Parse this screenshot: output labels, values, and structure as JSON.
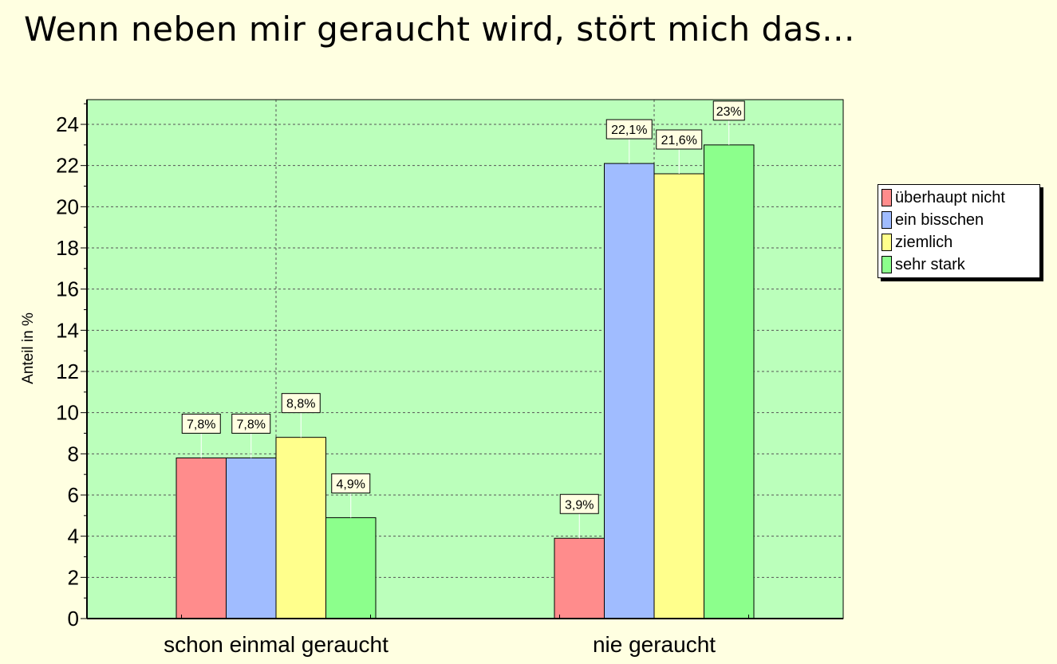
{
  "title": "Wenn neben mir geraucht wird, stört mich das...",
  "chart_data": {
    "type": "bar",
    "categories": [
      "schon einmal geraucht",
      "nie geraucht"
    ],
    "series": [
      {
        "name": "überhaupt nicht",
        "values": [
          7.8,
          3.9
        ],
        "labels": [
          "7,8%",
          "3,9%"
        ],
        "color": "#ff8c8c"
      },
      {
        "name": "ein bisschen",
        "values": [
          7.8,
          22.1
        ],
        "labels": [
          "7,8%",
          "22,1%"
        ],
        "color": "#a0bcff"
      },
      {
        "name": "ziemlich",
        "values": [
          8.8,
          21.6
        ],
        "labels": [
          "8,8%",
          "21,6%"
        ],
        "color": "#ffff8c"
      },
      {
        "name": "sehr stark",
        "values": [
          4.9,
          23
        ],
        "labels": [
          "4,9%",
          "23%"
        ],
        "color": "#8cff8c"
      }
    ],
    "xlabel": "",
    "ylabel": "Anteil in %",
    "ylim": [
      0,
      25.2
    ],
    "yticks": [
      0,
      2,
      4,
      6,
      8,
      10,
      12,
      14,
      16,
      18,
      20,
      22,
      24
    ],
    "grid": true,
    "legend": "right",
    "plot_background": "#bbffbb"
  }
}
